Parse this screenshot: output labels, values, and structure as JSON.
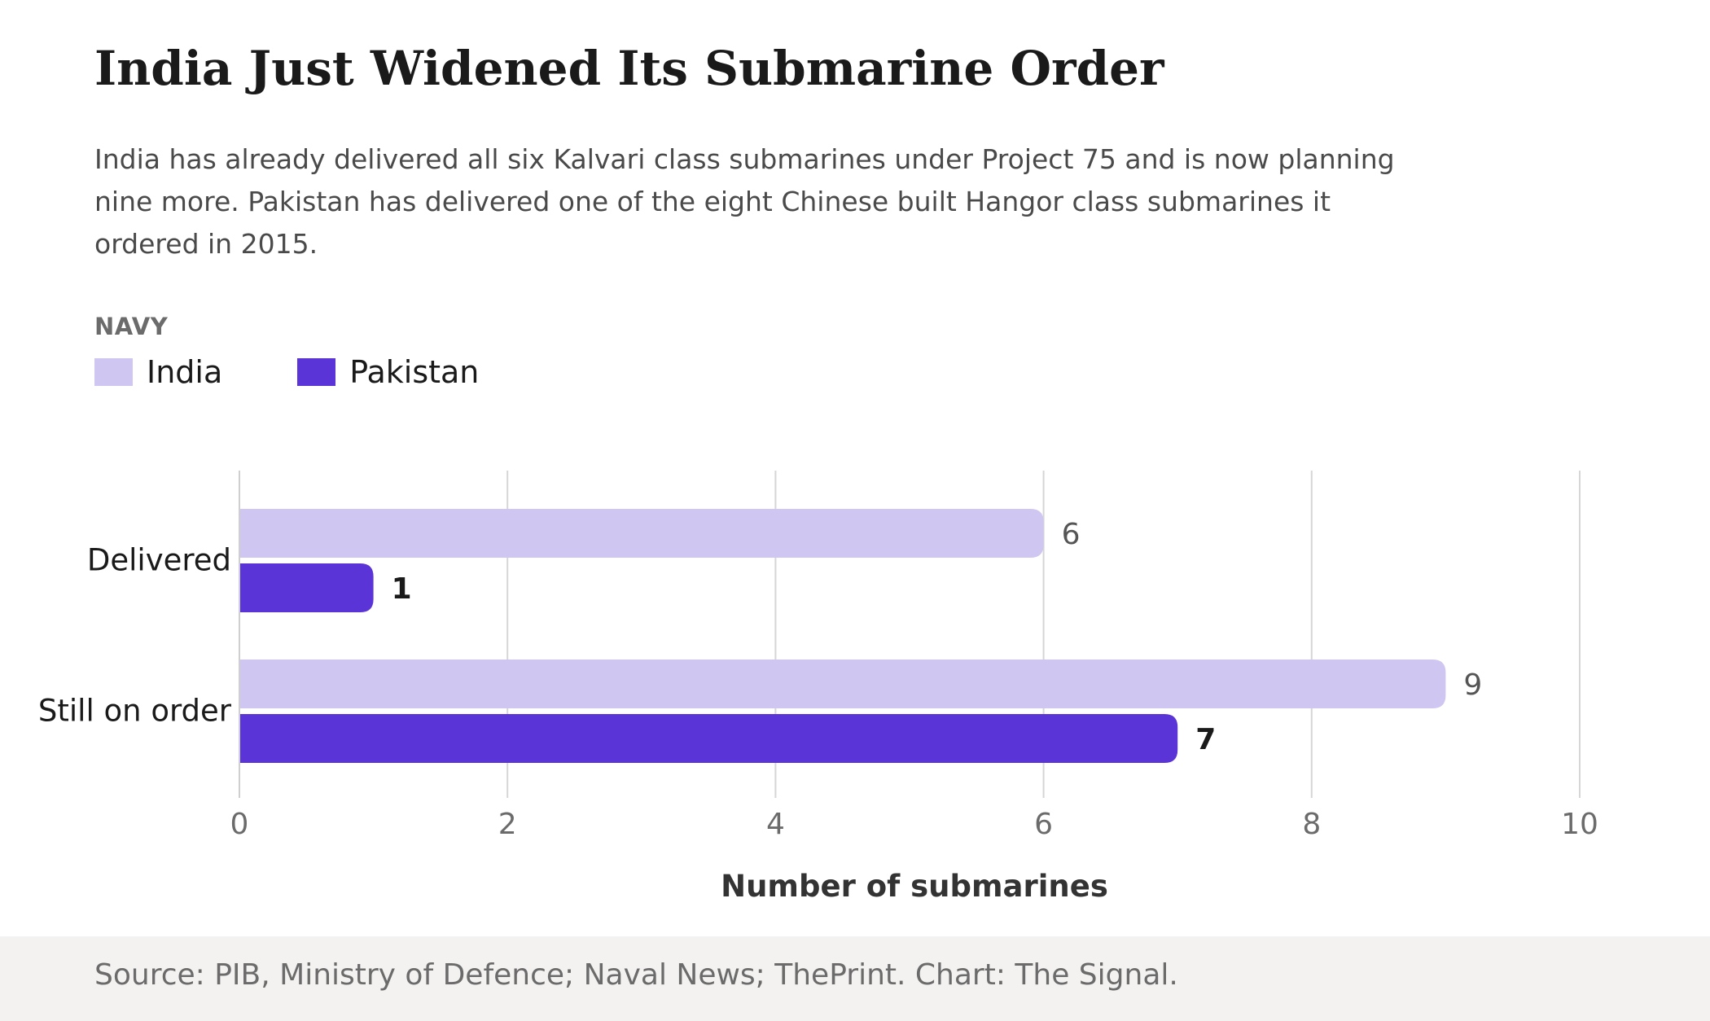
{
  "title": "India Just Widened Its Submarine Order",
  "subtitle": "India has already delivered all six Kalvari class submarines under Project 75 and is now planning nine more. Pakistan has delivered one of the eight Chinese built Hangor class submarines it ordered in 2015.",
  "legend": {
    "title": "NAVY",
    "items": [
      {
        "label": "India",
        "color": "#d0c6f2"
      },
      {
        "label": "Pakistan",
        "color": "#5a34d6"
      }
    ]
  },
  "source": "Source: PIB, Ministry of Defence; Naval News; ThePrint. Chart: The Signal.",
  "chart_data": {
    "type": "bar",
    "orientation": "horizontal",
    "categories": [
      "Delivered",
      "Still on order"
    ],
    "series": [
      {
        "name": "India",
        "values": [
          6,
          9
        ],
        "color": "#d0c6f2"
      },
      {
        "name": "Pakistan",
        "values": [
          1,
          7
        ],
        "color": "#5a34d6"
      }
    ],
    "xlabel": "Number of submarines",
    "ylabel": "",
    "xlim": [
      0,
      10
    ],
    "xticks": [
      0,
      2,
      4,
      6,
      8,
      10
    ],
    "grid": true,
    "legend_position": "top-left"
  }
}
